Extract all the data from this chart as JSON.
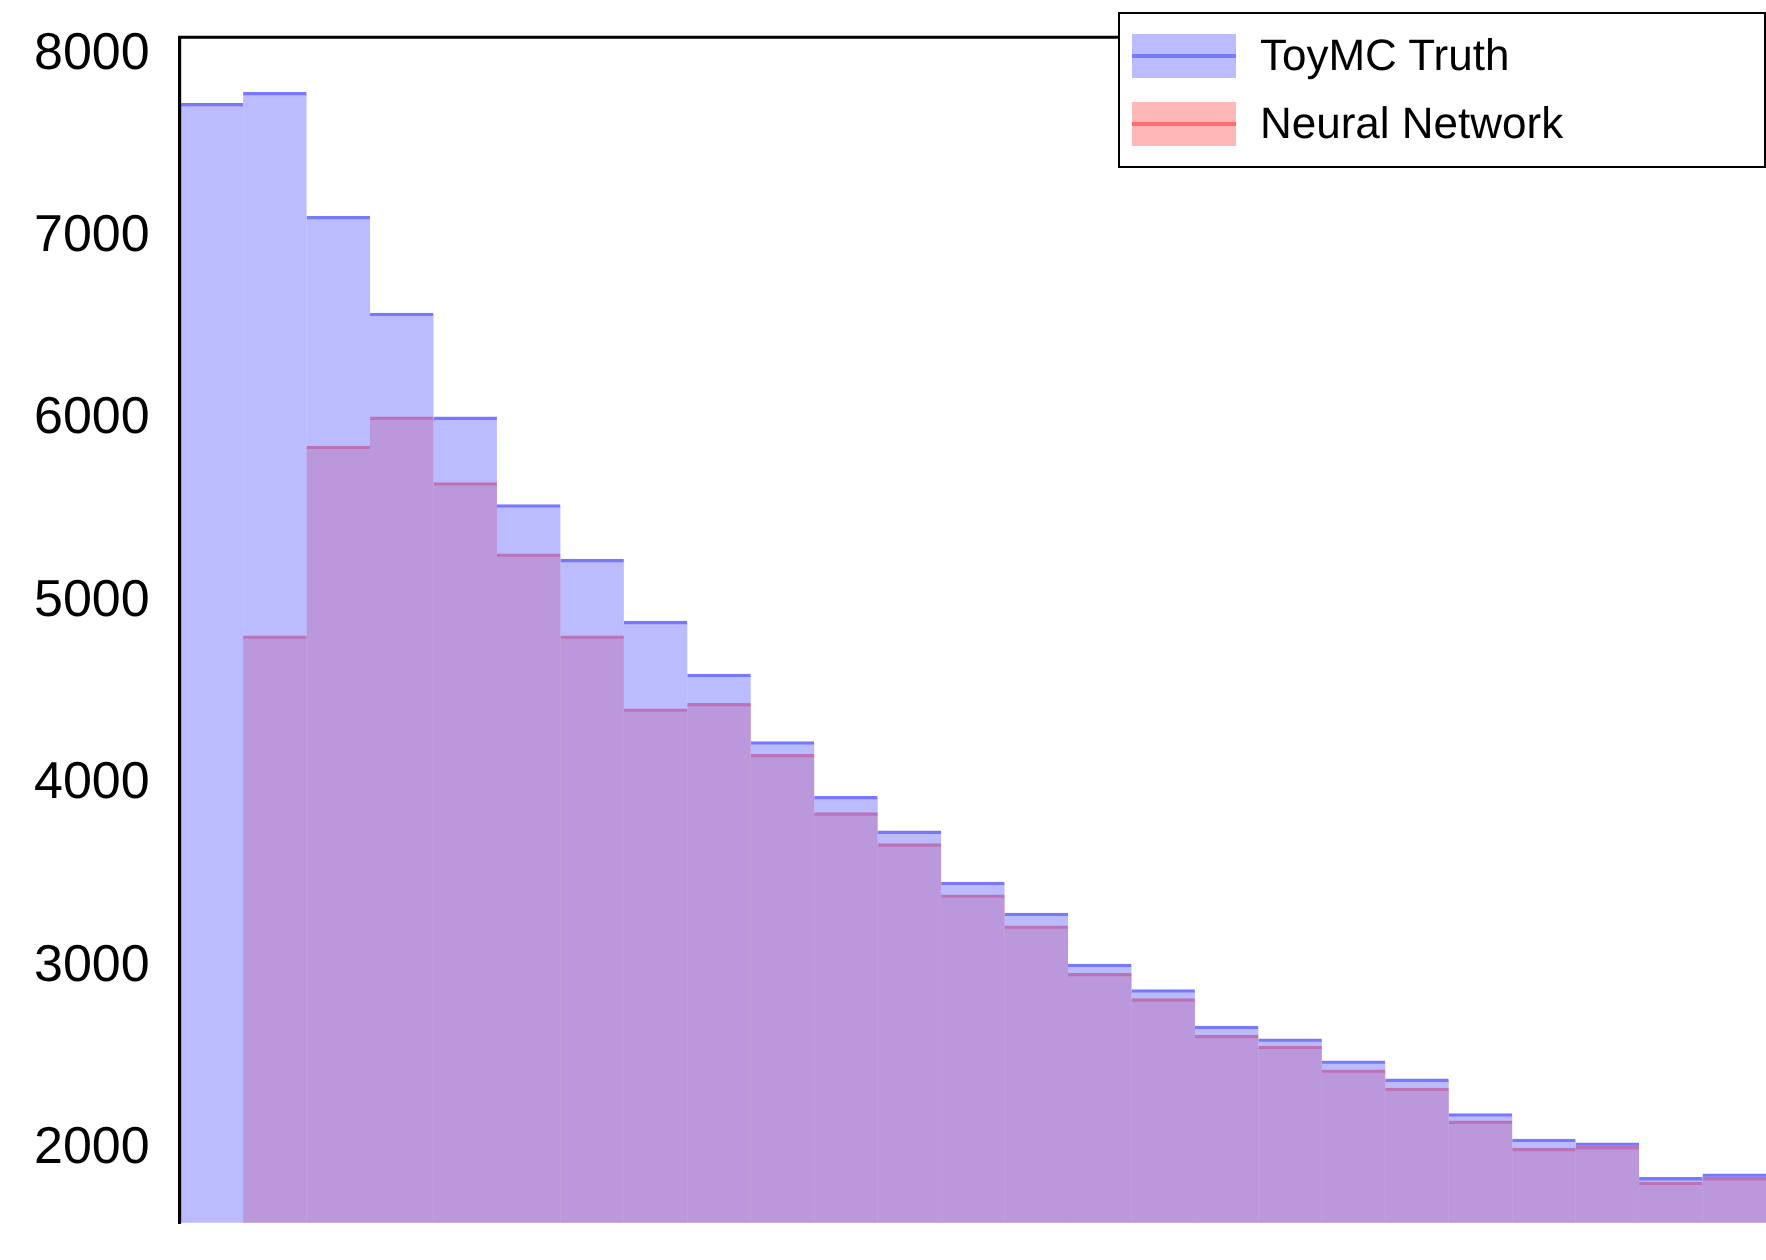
{
  "chart_data": {
    "type": "histogram",
    "categories": [
      null,
      null,
      null,
      null,
      null,
      null,
      null,
      null,
      null,
      null,
      null,
      null,
      null,
      null,
      null,
      null,
      null,
      null,
      null,
      null,
      null,
      null,
      null,
      null,
      null
    ],
    "series": [
      {
        "name": "ToyMC Truth",
        "color": "#7777ff",
        "values": [
          7730,
          7790,
          7110,
          6580,
          6010,
          5530,
          5230,
          4890,
          4600,
          4230,
          3930,
          3740,
          3460,
          3290,
          3010,
          2870,
          2670,
          2600,
          2480,
          2380,
          2190,
          2050,
          2030,
          1840,
          1860
        ]
      },
      {
        "name": "Neural Network",
        "color": "#ff6f6f",
        "values": [
          null,
          4810,
          5850,
          6010,
          5650,
          5260,
          4810,
          4410,
          4440,
          4160,
          3840,
          3670,
          3390,
          3220,
          2960,
          2820,
          2620,
          2560,
          2430,
          2330,
          2150,
          2000,
          2010,
          1815,
          1840
        ]
      }
    ],
    "ylim": [
      1593,
      8094
    ],
    "yticks": [
      2000,
      3000,
      4000,
      5000,
      6000,
      7000,
      8000
    ],
    "tick_labels": "y",
    "grid": false,
    "legend": "top right"
  }
}
